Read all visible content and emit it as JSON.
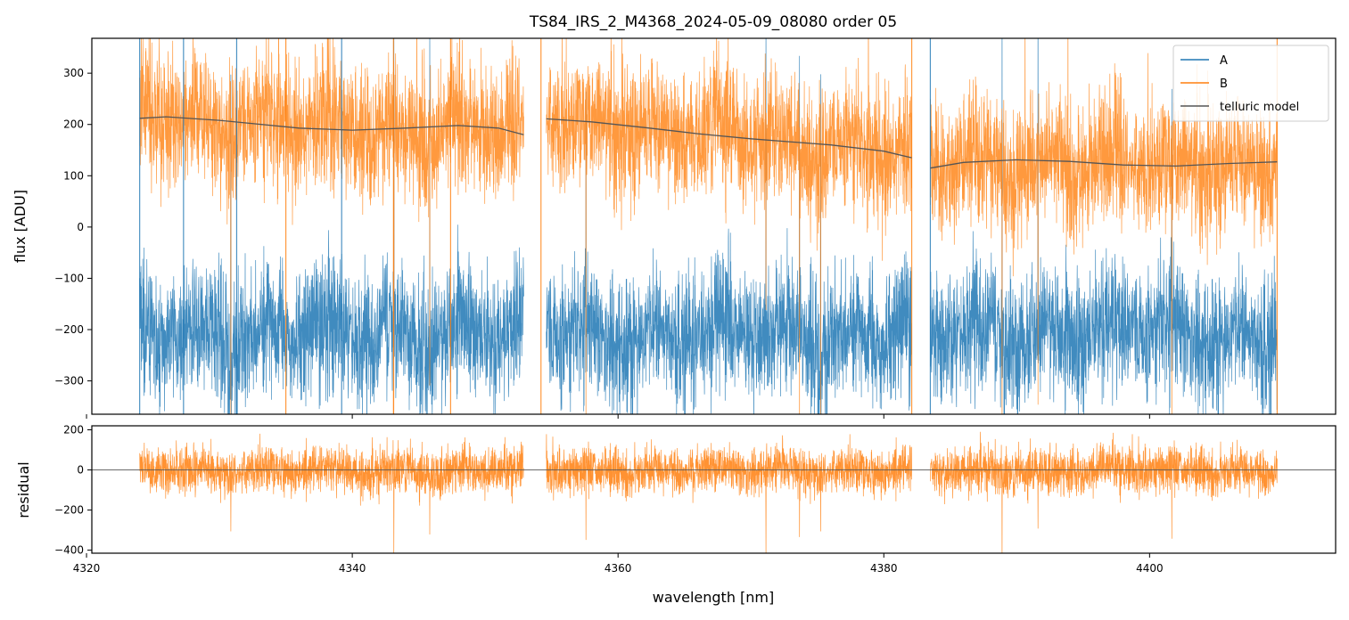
{
  "chart_data": [
    {
      "type": "line",
      "panel": "main",
      "title": "TS84_IRS_2_M4368_2024-05-09_08080  order 05",
      "xlabel": "",
      "ylabel": "flux [ADU]",
      "xlim": [
        4320.4,
        4414.0
      ],
      "ylim": [
        -365,
        368
      ],
      "yticks": [
        -300,
        -200,
        -100,
        0,
        100,
        200,
        300
      ],
      "ytick_labels": [
        "−300",
        "−200",
        "−100",
        "0",
        "100",
        "200",
        "300"
      ],
      "xticks": [
        4320,
        4340,
        4360,
        4380,
        4400
      ],
      "legend_position": "top-right",
      "segments": [
        [
          4324.0,
          4352.9
        ],
        [
          4354.6,
          4382.1
        ],
        [
          4383.5,
          4409.6
        ]
      ],
      "series": [
        {
          "name": "A",
          "color": "#1f77b4",
          "baseline": -205,
          "amplitude": 75
        },
        {
          "name": "B",
          "color": "#ff7f0e",
          "baseline_from": "telluric model",
          "amplitude": 75
        },
        {
          "name": "telluric model",
          "color": "#555555",
          "points": [
            [
              [
                4324.0,
                212
              ],
              [
                4326.0,
                215
              ],
              [
                4330.0,
                208
              ],
              [
                4336.0,
                193
              ],
              [
                4340.0,
                189
              ],
              [
                4344.0,
                193
              ],
              [
                4348.0,
                198
              ],
              [
                4351.0,
                193
              ],
              [
                4352.9,
                180
              ]
            ],
            [
              [
                4354.6,
                211
              ],
              [
                4358.0,
                205
              ],
              [
                4362.0,
                194
              ],
              [
                4366.0,
                182
              ],
              [
                4370.0,
                172
              ],
              [
                4376.0,
                160
              ],
              [
                4380.0,
                148
              ],
              [
                4382.1,
                135
              ]
            ],
            [
              [
                4383.5,
                115
              ],
              [
                4386.0,
                126
              ],
              [
                4390.0,
                131
              ],
              [
                4394.0,
                128
              ],
              [
                4398.0,
                121
              ],
              [
                4402.0,
                119
              ],
              [
                4406.0,
                124
              ],
              [
                4409.6,
                127
              ]
            ]
          ]
        }
      ]
    },
    {
      "type": "line",
      "panel": "residual",
      "title": "",
      "xlabel": "wavelength [nm]",
      "ylabel": "residual",
      "xlim": [
        4320.4,
        4414.0
      ],
      "ylim": [
        -415,
        220
      ],
      "yticks": [
        -400,
        -200,
        0,
        200
      ],
      "ytick_labels": [
        "−400",
        "−200",
        "0",
        "200"
      ],
      "xticks": [
        4320,
        4340,
        4360,
        4380,
        4400
      ],
      "xtick_labels": [
        "4320",
        "4340",
        "4360",
        "4380",
        "4400"
      ],
      "series": [
        {
          "name": "residual",
          "color": "#ff7f0e",
          "baseline": 0,
          "amplitude": 60
        }
      ]
    }
  ],
  "legend": {
    "entries": [
      "A",
      "B",
      "telluric model"
    ]
  }
}
